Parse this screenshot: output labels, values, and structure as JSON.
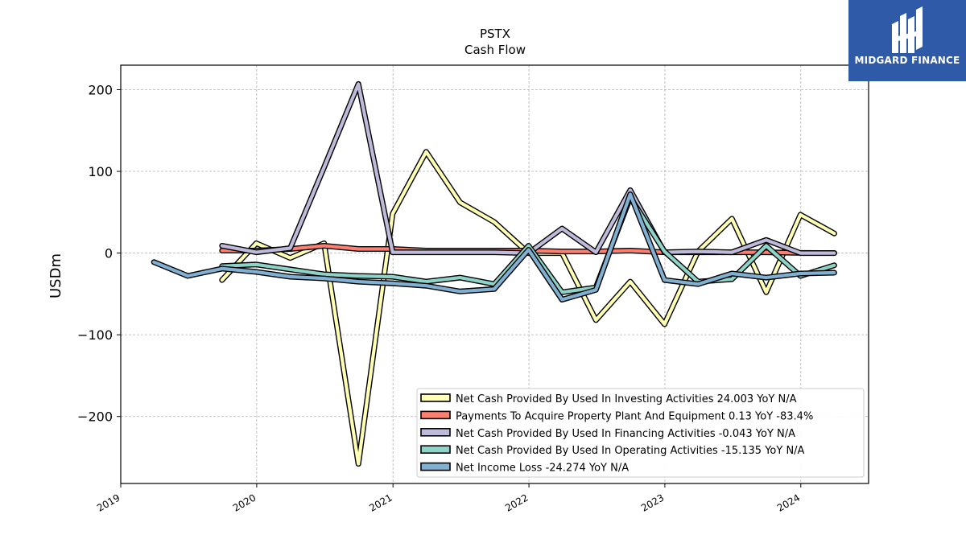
{
  "chart_data": {
    "type": "line",
    "title": "PSTX",
    "subtitle": "Cash Flow",
    "ylabel": "USDm",
    "xlim": [
      "2019-01-01",
      "2024-07-01"
    ],
    "ylim": [
      -282,
      230
    ],
    "grid": true,
    "legend_position": "lower-right",
    "x_ticks": [
      "2019",
      "2020",
      "2021",
      "2022",
      "2023",
      "2024"
    ],
    "y_ticks": [
      "200",
      "100",
      "0",
      "−100",
      "−200"
    ],
    "y_tick_values": [
      200,
      100,
      0,
      -100,
      -200
    ],
    "series": [
      {
        "name": "Net Cash Provided By Used In Investing Activities  24.003 YoY N/A",
        "color": "#ffffb3",
        "points": [
          [
            "2019-09-30",
            -33
          ],
          [
            "2019-12-31",
            12
          ],
          [
            "2020-03-31",
            -6
          ],
          [
            "2020-06-30",
            12
          ],
          [
            "2020-09-30",
            -258
          ],
          [
            "2020-12-31",
            48
          ],
          [
            "2021-03-31",
            124
          ],
          [
            "2021-06-30",
            62
          ],
          [
            "2021-09-30",
            38
          ],
          [
            "2021-12-31",
            0
          ],
          [
            "2022-03-31",
            0
          ],
          [
            "2022-06-30",
            -82
          ],
          [
            "2022-09-30",
            -35
          ],
          [
            "2022-12-31",
            -87
          ],
          [
            "2023-03-31",
            2
          ],
          [
            "2023-06-30",
            42
          ],
          [
            "2023-09-30",
            -48
          ],
          [
            "2023-12-31",
            47
          ],
          [
            "2024-03-31",
            24
          ]
        ]
      },
      {
        "name": "Payments To Acquire Property Plant And Equipment  0.13 YoY -83.4%",
        "color": "#fb8072",
        "points": [
          [
            "2019-09-30",
            3
          ],
          [
            "2019-12-31",
            3
          ],
          [
            "2020-03-31",
            5
          ],
          [
            "2020-06-30",
            9
          ],
          [
            "2020-09-30",
            5
          ],
          [
            "2020-12-31",
            5
          ],
          [
            "2021-03-31",
            3
          ],
          [
            "2021-06-30",
            3
          ],
          [
            "2021-09-30",
            3
          ],
          [
            "2021-12-31",
            3
          ],
          [
            "2022-03-31",
            2
          ],
          [
            "2022-06-30",
            2
          ],
          [
            "2022-09-30",
            3
          ],
          [
            "2022-12-31",
            1
          ],
          [
            "2023-03-31",
            1
          ],
          [
            "2023-06-30",
            1
          ],
          [
            "2023-09-30",
            1
          ],
          [
            "2023-12-31",
            0.2
          ],
          [
            "2024-03-31",
            0.13
          ]
        ]
      },
      {
        "name": "Net Cash Provided By Used In Financing Activities  -0.043 YoY N/A",
        "color": "#bebada",
        "points": [
          [
            "2019-09-30",
            9
          ],
          [
            "2019-12-31",
            1
          ],
          [
            "2020-03-31",
            6
          ],
          [
            "2020-06-30",
            105
          ],
          [
            "2020-09-30",
            207
          ],
          [
            "2020-12-31",
            1
          ],
          [
            "2021-03-31",
            1
          ],
          [
            "2021-06-30",
            1
          ],
          [
            "2021-09-30",
            1
          ],
          [
            "2021-12-31",
            0
          ],
          [
            "2022-03-31",
            30
          ],
          [
            "2022-06-30",
            1
          ],
          [
            "2022-09-30",
            77
          ],
          [
            "2022-12-31",
            1
          ],
          [
            "2023-03-31",
            2
          ],
          [
            "2023-06-30",
            1
          ],
          [
            "2023-09-30",
            16
          ],
          [
            "2023-12-31",
            0
          ],
          [
            "2024-03-31",
            0
          ]
        ]
      },
      {
        "name": "Net Cash Provided By Used In Operating Activities  -15.135 YoY N/A",
        "color": "#8dd3c7",
        "points": [
          [
            "2019-09-30",
            -16
          ],
          [
            "2019-12-31",
            -14
          ],
          [
            "2020-03-31",
            -20
          ],
          [
            "2020-06-30",
            -26
          ],
          [
            "2020-09-30",
            -28
          ],
          [
            "2020-12-31",
            -29
          ],
          [
            "2021-03-31",
            -35
          ],
          [
            "2021-06-30",
            -30
          ],
          [
            "2021-09-30",
            -38
          ],
          [
            "2021-12-31",
            9
          ],
          [
            "2022-03-31",
            -48
          ],
          [
            "2022-06-30",
            -42
          ],
          [
            "2022-09-30",
            68
          ],
          [
            "2022-12-31",
            2
          ],
          [
            "2023-03-31",
            -35
          ],
          [
            "2023-06-30",
            -32
          ],
          [
            "2023-09-30",
            9
          ],
          [
            "2023-12-31",
            -28
          ],
          [
            "2024-03-31",
            -15
          ]
        ]
      },
      {
        "name": "Net Income Loss  -24.274 YoY N/A",
        "color": "#80b1d3",
        "points": [
          [
            "2019-03-31",
            -11
          ],
          [
            "2019-06-30",
            -28
          ],
          [
            "2019-09-30",
            -19
          ],
          [
            "2019-12-31",
            -23
          ],
          [
            "2020-03-31",
            -29
          ],
          [
            "2020-06-30",
            -31
          ],
          [
            "2020-09-30",
            -35
          ],
          [
            "2020-12-31",
            -37
          ],
          [
            "2021-03-31",
            -40
          ],
          [
            "2021-06-30",
            -47
          ],
          [
            "2021-09-30",
            -44
          ],
          [
            "2021-12-31",
            4
          ],
          [
            "2022-03-31",
            -57
          ],
          [
            "2022-06-30",
            -45
          ],
          [
            "2022-09-30",
            72
          ],
          [
            "2022-12-31",
            -33
          ],
          [
            "2023-03-31",
            -38
          ],
          [
            "2023-06-30",
            -25
          ],
          [
            "2023-09-30",
            -30
          ],
          [
            "2023-12-31",
            -25
          ],
          [
            "2024-03-31",
            -24
          ]
        ]
      }
    ]
  },
  "logo": {
    "text": "MIDGARD FINANCE",
    "color": "#2f5aa8"
  }
}
